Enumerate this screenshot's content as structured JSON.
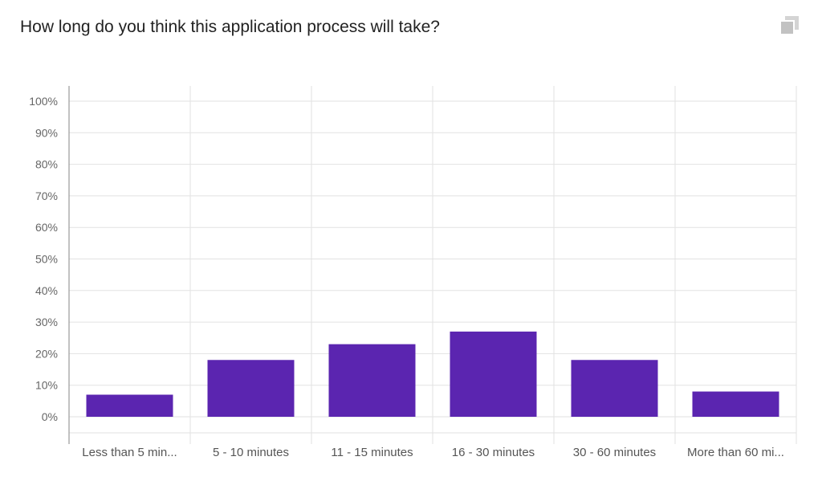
{
  "question": "How long do you think this application process will take?",
  "icons": {
    "copy": "copy-icon"
  },
  "colors": {
    "bar": "#5b25b0",
    "grid": "#e2e2e2",
    "axis": "#999999"
  },
  "chart_data": {
    "type": "bar",
    "title": "",
    "xlabel": "",
    "ylabel": "",
    "categories": [
      "Less than 5 min...",
      "5 - 10 minutes",
      "11 - 15 minutes",
      "16 - 30 minutes",
      "30 - 60 minutes",
      "More than 60 mi..."
    ],
    "values": [
      7,
      18,
      23,
      27,
      18,
      8
    ],
    "ylim": [
      0,
      100
    ],
    "yticks": [
      "0%",
      "10%",
      "20%",
      "30%",
      "40%",
      "50%",
      "60%",
      "70%",
      "80%",
      "90%",
      "100%"
    ],
    "grid": true
  }
}
